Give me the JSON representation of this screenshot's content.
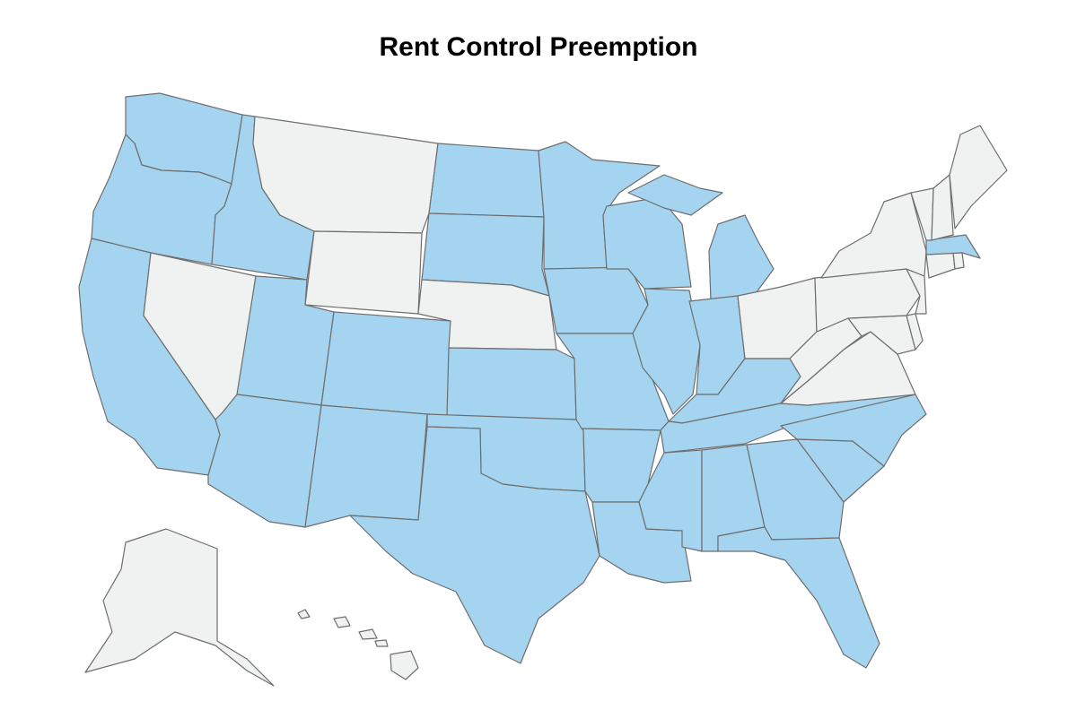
{
  "title": "Rent Control Preemption",
  "colors": {
    "preempted": "#a5d4f0",
    "not_preempted": "#f0f1f1",
    "border": "#6e6e6e",
    "background": "#ffffff"
  },
  "states": [
    {
      "name": "Washington",
      "preempted": true
    },
    {
      "name": "Oregon",
      "preempted": true
    },
    {
      "name": "California",
      "preempted": true
    },
    {
      "name": "Idaho",
      "preempted": true
    },
    {
      "name": "Nevada",
      "preempted": false
    },
    {
      "name": "Montana",
      "preempted": false
    },
    {
      "name": "Wyoming",
      "preempted": false
    },
    {
      "name": "Utah",
      "preempted": true
    },
    {
      "name": "Arizona",
      "preempted": true
    },
    {
      "name": "Colorado",
      "preempted": true
    },
    {
      "name": "New Mexico",
      "preempted": true
    },
    {
      "name": "North Dakota",
      "preempted": true
    },
    {
      "name": "South Dakota",
      "preempted": true
    },
    {
      "name": "Nebraska",
      "preempted": false
    },
    {
      "name": "Kansas",
      "preempted": true
    },
    {
      "name": "Oklahoma",
      "preempted": true
    },
    {
      "name": "Texas",
      "preempted": true
    },
    {
      "name": "Minnesota",
      "preempted": true
    },
    {
      "name": "Iowa",
      "preempted": true
    },
    {
      "name": "Missouri",
      "preempted": true
    },
    {
      "name": "Arkansas",
      "preempted": true
    },
    {
      "name": "Louisiana",
      "preempted": true
    },
    {
      "name": "Wisconsin",
      "preempted": true
    },
    {
      "name": "Illinois",
      "preempted": true
    },
    {
      "name": "Michigan",
      "preempted": true
    },
    {
      "name": "Indiana",
      "preempted": true
    },
    {
      "name": "Ohio",
      "preempted": false
    },
    {
      "name": "Kentucky",
      "preempted": true
    },
    {
      "name": "Tennessee",
      "preempted": true
    },
    {
      "name": "Mississippi",
      "preempted": true
    },
    {
      "name": "Alabama",
      "preempted": true
    },
    {
      "name": "Georgia",
      "preempted": true
    },
    {
      "name": "Florida",
      "preempted": true
    },
    {
      "name": "South Carolina",
      "preempted": true
    },
    {
      "name": "North Carolina",
      "preempted": true
    },
    {
      "name": "Virginia",
      "preempted": false
    },
    {
      "name": "West Virginia",
      "preempted": false
    },
    {
      "name": "Maryland",
      "preempted": false
    },
    {
      "name": "Delaware",
      "preempted": false
    },
    {
      "name": "Pennsylvania",
      "preempted": false
    },
    {
      "name": "New Jersey",
      "preempted": false
    },
    {
      "name": "New York",
      "preempted": false
    },
    {
      "name": "Connecticut",
      "preempted": false
    },
    {
      "name": "Rhode Island",
      "preempted": false
    },
    {
      "name": "Massachusetts",
      "preempted": true
    },
    {
      "name": "Vermont",
      "preempted": false
    },
    {
      "name": "New Hampshire",
      "preempted": false
    },
    {
      "name": "Maine",
      "preempted": false
    },
    {
      "name": "Alaska",
      "preempted": false
    },
    {
      "name": "Hawaii",
      "preempted": false
    }
  ]
}
